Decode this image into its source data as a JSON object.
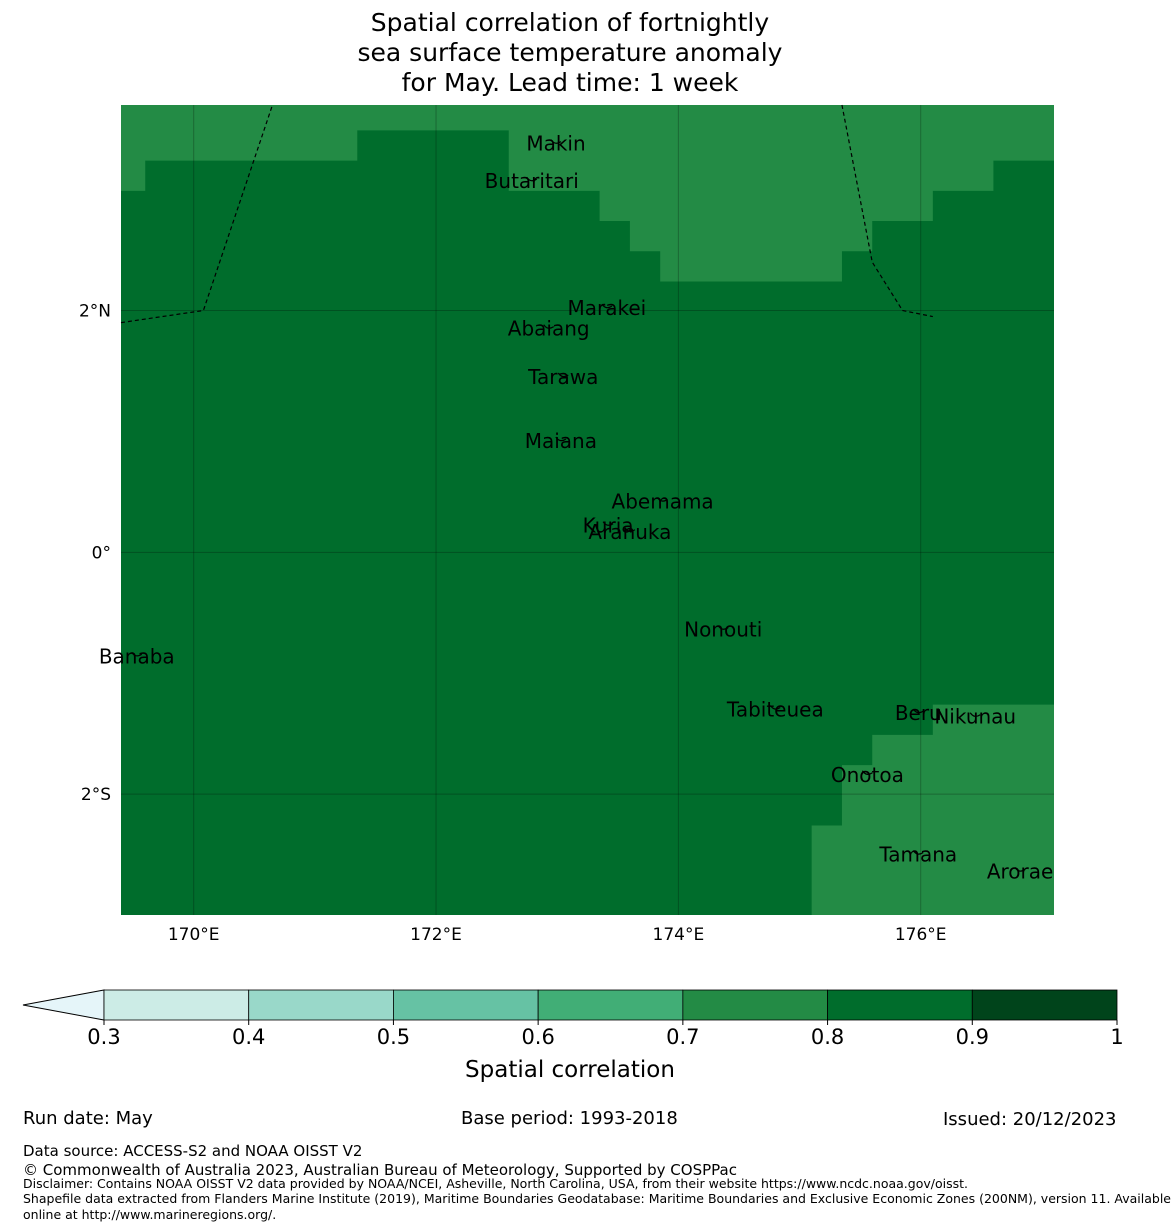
{
  "title": {
    "line1": "Spatial correlation of fortnightly",
    "line2": "sea surface temperature anomaly",
    "line3": "for May. Lead time: 1 week"
  },
  "map": {
    "lon_range": [
      169.4,
      177.1
    ],
    "lat_range": [
      -3.0,
      3.7
    ],
    "lon_ticks": [
      {
        "value": 170,
        "label": "170°E"
      },
      {
        "value": 172,
        "label": "172°E"
      },
      {
        "value": 174,
        "label": "174°E"
      },
      {
        "value": 176,
        "label": "176°E"
      }
    ],
    "lat_ticks": [
      {
        "value": 2,
        "label": "2°N"
      },
      {
        "value": 0,
        "label": "0°"
      },
      {
        "value": -2,
        "label": "2°S"
      }
    ],
    "colors": {
      "class_0_7_0_8": "#238b45",
      "class_0_8_0_9": "#006d2c"
    },
    "correlation_field": {
      "background_class": "0.8-0.9",
      "regions_0_7_0_8": [
        [
          [
            169.4,
            3.7
          ],
          [
            177.1,
            3.7
          ],
          [
            177.1,
            3.24
          ],
          [
            176.6,
            3.24
          ],
          [
            176.6,
            2.99
          ],
          [
            176.1,
            2.99
          ],
          [
            176.1,
            2.74
          ],
          [
            175.6,
            2.74
          ],
          [
            175.6,
            2.49
          ],
          [
            175.35,
            2.49
          ],
          [
            175.35,
            2.24
          ],
          [
            173.85,
            2.24
          ],
          [
            173.85,
            2.49
          ],
          [
            173.6,
            2.49
          ],
          [
            173.6,
            2.74
          ],
          [
            173.35,
            2.74
          ],
          [
            173.35,
            2.99
          ],
          [
            172.6,
            2.99
          ],
          [
            172.6,
            3.49
          ],
          [
            171.35,
            3.49
          ],
          [
            171.35,
            3.24
          ],
          [
            169.6,
            3.24
          ],
          [
            169.6,
            2.99
          ],
          [
            169.4,
            2.99
          ]
        ],
        [
          [
            177.1,
            -1.26
          ],
          [
            177.1,
            -3.0
          ],
          [
            175.1,
            -3.0
          ],
          [
            175.1,
            -2.26
          ],
          [
            175.35,
            -2.26
          ],
          [
            175.35,
            -1.76
          ],
          [
            175.6,
            -1.76
          ],
          [
            175.6,
            -1.51
          ],
          [
            176.1,
            -1.51
          ],
          [
            176.1,
            -1.26
          ]
        ]
      ]
    },
    "eez_boundaries": [
      [
        [
          169.4,
          1.9
        ],
        [
          170.08,
          2.0
        ],
        [
          170.65,
          3.7
        ]
      ],
      [
        [
          175.35,
          3.7
        ],
        [
          175.6,
          2.4
        ],
        [
          175.85,
          2.0
        ],
        [
          176.1,
          1.95
        ]
      ]
    ],
    "islands": [
      {
        "name": "Makin",
        "lon": 172.99,
        "lat": 3.38
      },
      {
        "name": "Butaritari",
        "lon": 172.79,
        "lat": 3.07
      },
      {
        "name": "Marakei",
        "lon": 173.41,
        "lat": 2.02
      },
      {
        "name": "Abaiang",
        "lon": 172.93,
        "lat": 1.85
      },
      {
        "name": "Tarawa",
        "lon": 173.05,
        "lat": 1.45
      },
      {
        "name": "Maiana",
        "lon": 173.03,
        "lat": 0.92
      },
      {
        "name": "Abemama",
        "lon": 173.87,
        "lat": 0.42
      },
      {
        "name": "Kuria",
        "lon": 173.42,
        "lat": 0.22
      },
      {
        "name": "Aranuka",
        "lon": 173.6,
        "lat": 0.17
      },
      {
        "name": "Nonouti",
        "lon": 174.37,
        "lat": -0.64
      },
      {
        "name": "Banaba",
        "lon": 169.53,
        "lat": -0.86
      },
      {
        "name": "Tabiteuea",
        "lon": 174.8,
        "lat": -1.3
      },
      {
        "name": "Beru",
        "lon": 175.98,
        "lat": -1.33
      },
      {
        "name": "Nikunau",
        "lon": 176.45,
        "lat": -1.36
      },
      {
        "name": "Onotoa",
        "lon": 175.56,
        "lat": -1.84
      },
      {
        "name": "Tamana",
        "lon": 175.98,
        "lat": -2.5
      },
      {
        "name": "Arorae",
        "lon": 176.82,
        "lat": -2.64
      }
    ]
  },
  "colorbar": {
    "label": "Spatial correlation",
    "ticks": [
      "0.3",
      "0.4",
      "0.5",
      "0.6",
      "0.7",
      "0.8",
      "0.9",
      "1"
    ],
    "extend_color": "#e5f5f9",
    "colors": [
      "#ccece6",
      "#99d8c9",
      "#66c2a4",
      "#41ae76",
      "#238b45",
      "#006d2c",
      "#00441b"
    ]
  },
  "footer": {
    "run_date": "Run date: May",
    "base_period": "Base period: 1993-2018",
    "issued": "Issued: 20/12/2023",
    "data_source": "Data source: ACCESS-S2 and NOAA OISST V2",
    "copyright": "© Commonwealth of Australia 2023, Australian Bureau of Meteorology, Supported by COSPPac",
    "disclaimer": "Disclaimer: Contains NOAA OISST V2 data provided by NOAA/NCEI, Asheville, North Carolina, USA, from their website https://www.ncdc.noaa.gov/oisst.",
    "shapefile_line1": "Shapefile data extracted from Flanders Marine Institute (2019), Maritime Boundaries Geodatabase: Maritime Boundaries and Exclusive Economic Zones (200NM), version 11. Available",
    "shapefile_line2": "online at http://www.marineregions.org/."
  }
}
